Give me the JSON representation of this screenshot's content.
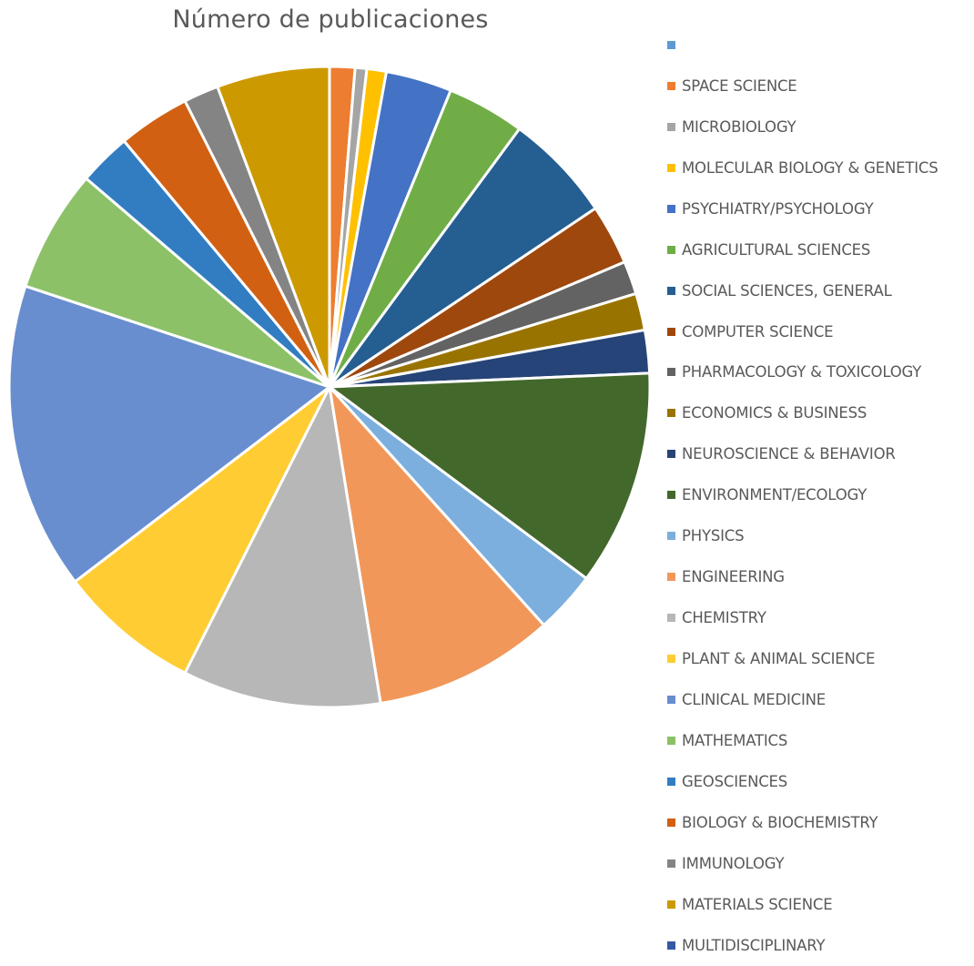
{
  "chart_data": {
    "type": "pie",
    "title": "Número de publicaciones",
    "legend_position": "right",
    "series": [
      {
        "name": "",
        "value": 0,
        "color": "#5b9bd5"
      },
      {
        "name": "SPACE SCIENCE",
        "value": 1.3,
        "color": "#ed7d31"
      },
      {
        "name": "MICROBIOLOGY",
        "value": 0.6,
        "color": "#a5a5a5"
      },
      {
        "name": "MOLECULAR BIOLOGY & GENETICS",
        "value": 1.0,
        "color": "#ffc000"
      },
      {
        "name": "PSYCHIATRY/PSYCHOLOGY",
        "value": 3.4,
        "color": "#4472c4"
      },
      {
        "name": "AGRICULTURAL SCIENCES",
        "value": 4.0,
        "color": "#70ad47"
      },
      {
        "name": "SOCIAL SCIENCES, GENERAL",
        "value": 5.6,
        "color": "#255e91"
      },
      {
        "name": "COMPUTER SCIENCE",
        "value": 3.1,
        "color": "#9e480e"
      },
      {
        "name": "PHARMACOLOGY & TOXICOLOGY",
        "value": 1.7,
        "color": "#636363"
      },
      {
        "name": "ECONOMICS & BUSINESS",
        "value": 1.9,
        "color": "#997300"
      },
      {
        "name": "NEUROSCIENCE & BEHAVIOR",
        "value": 2.2,
        "color": "#264478"
      },
      {
        "name": "ENVIRONMENT/ECOLOGY",
        "value": 11.1,
        "color": "#43682b"
      },
      {
        "name": "PHYSICS",
        "value": 3.2,
        "color": "#7cafdd"
      },
      {
        "name": "ENGINEERING",
        "value": 9.3,
        "color": "#f1975a"
      },
      {
        "name": "CHEMISTRY",
        "value": 10.2,
        "color": "#b7b7b7"
      },
      {
        "name": "PLANT & ANIMAL SCIENCE",
        "value": 7.3,
        "color": "#ffcd33"
      },
      {
        "name": "CLINICAL MEDICINE",
        "value": 15.8,
        "color": "#698ed0"
      },
      {
        "name": "MATHEMATICS",
        "value": 6.3,
        "color": "#8cc168"
      },
      {
        "name": "GEOSCIENCES",
        "value": 2.7,
        "color": "#327dc2"
      },
      {
        "name": "BIOLOGY & BIOCHEMISTRY",
        "value": 3.7,
        "color": "#d26012"
      },
      {
        "name": "IMMUNOLOGY",
        "value": 1.8,
        "color": "#848484"
      },
      {
        "name": "MATERIALS SCIENCE",
        "value": 5.8,
        "color": "#cc9a00"
      },
      {
        "name": "MULTIDISCIPLINARY",
        "value": 0,
        "color": "#335aa1"
      }
    ]
  }
}
